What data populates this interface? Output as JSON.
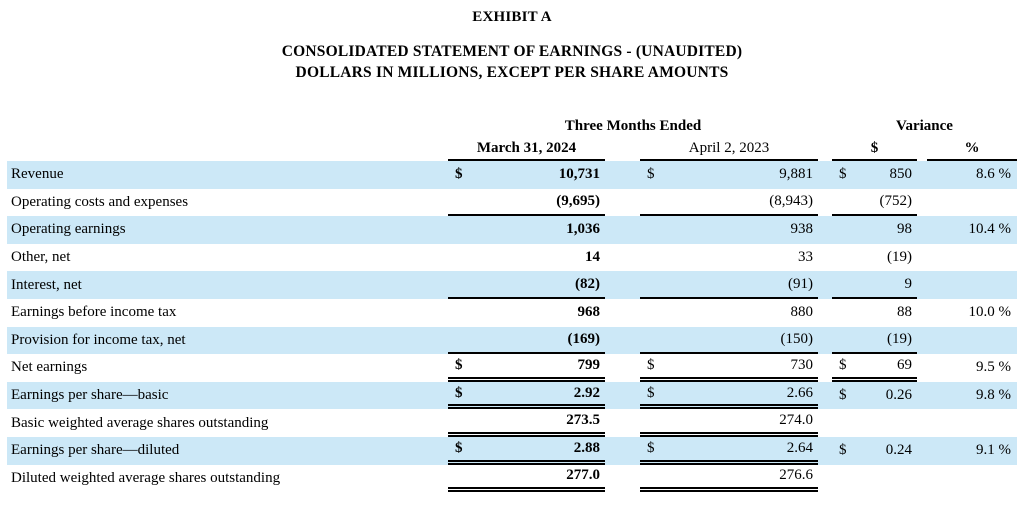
{
  "document": {
    "exhibit_label": "EXHIBIT A",
    "title_line1": "CONSOLIDATED STATEMENT OF EARNINGS - (UNAUDITED)",
    "title_line2": "DOLLARS IN MILLIONS, EXCEPT PER SHARE AMOUNTS"
  },
  "table": {
    "group_headers": {
      "period": "Three Months Ended",
      "variance": "Variance"
    },
    "column_headers": {
      "current": "March 31, 2024",
      "prior": "April 2, 2023",
      "variance_dollar": "$",
      "variance_percent": "%"
    },
    "currency_symbol": "$",
    "rows": [
      {
        "label": "Revenue",
        "dollar": true,
        "current": "10,731",
        "prior": "9,881",
        "variance": "850",
        "percent": "8.6 %",
        "shaded": true,
        "rule": "none",
        "rule_span": 0
      },
      {
        "label": "Operating costs and expenses",
        "dollar": false,
        "current": "(9,695)",
        "prior": "(8,943)",
        "variance": "(752)",
        "percent": "",
        "shaded": false,
        "rule": "single",
        "rule_span": 3
      },
      {
        "label": "Operating earnings",
        "dollar": false,
        "current": "1,036",
        "prior": "938",
        "variance": "98",
        "percent": "10.4 %",
        "shaded": true,
        "rule": "none",
        "rule_span": 0
      },
      {
        "label": "Other, net",
        "dollar": false,
        "current": "14",
        "prior": "33",
        "variance": "(19)",
        "percent": "",
        "shaded": false,
        "rule": "none",
        "rule_span": 0
      },
      {
        "label": "Interest, net",
        "dollar": false,
        "current": "(82)",
        "prior": "(91)",
        "variance": "9",
        "percent": "",
        "shaded": true,
        "rule": "single",
        "rule_span": 3
      },
      {
        "label": "Earnings before income tax",
        "dollar": false,
        "current": "968",
        "prior": "880",
        "variance": "88",
        "percent": "10.0 %",
        "shaded": false,
        "rule": "none",
        "rule_span": 0
      },
      {
        "label": "Provision for income tax, net",
        "dollar": false,
        "current": "(169)",
        "prior": "(150)",
        "variance": "(19)",
        "percent": "",
        "shaded": true,
        "rule": "single",
        "rule_span": 3
      },
      {
        "label": "Net earnings",
        "dollar": true,
        "current": "799",
        "prior": "730",
        "variance": "69",
        "percent": "9.5 %",
        "shaded": false,
        "rule": "double",
        "rule_span": 3
      },
      {
        "label": "Earnings per share—basic",
        "dollar": true,
        "current": "2.92",
        "prior": "2.66",
        "variance": "0.26",
        "percent": "9.8 %",
        "shaded": true,
        "rule": "double",
        "rule_span": 2
      },
      {
        "label": "Basic weighted average shares outstanding",
        "dollar": false,
        "current": "273.5",
        "prior": "274.0",
        "variance": "",
        "percent": "",
        "shaded": false,
        "rule": "double",
        "rule_span": 2
      },
      {
        "label": "Earnings per share—diluted",
        "dollar": true,
        "current": "2.88",
        "prior": "2.64",
        "variance": "0.24",
        "percent": "9.1 %",
        "shaded": true,
        "rule": "double",
        "rule_span": 2
      },
      {
        "label": "Diluted weighted average shares outstanding",
        "dollar": false,
        "current": "277.0",
        "prior": "276.6",
        "variance": "",
        "percent": "",
        "shaded": false,
        "rule": "double",
        "rule_span": 2
      }
    ]
  },
  "colors": {
    "background": "#ffffff",
    "row_shade": "#cce8f7",
    "text": "#000000",
    "rule": "#000000"
  }
}
